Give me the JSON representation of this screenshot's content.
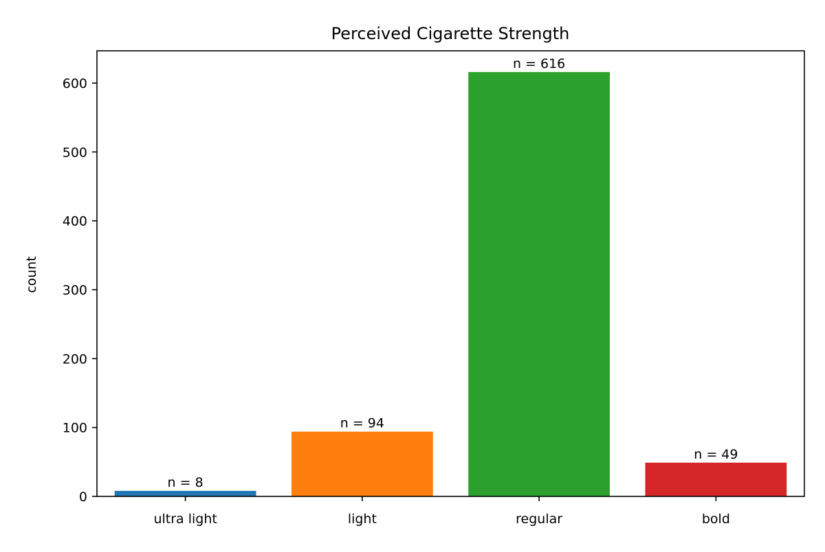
{
  "chart_data": {
    "type": "bar",
    "title": "Perceived Cigarette Strength",
    "xlabel": "",
    "ylabel": "count",
    "categories": [
      "ultra light",
      "light",
      "regular",
      "bold"
    ],
    "values": [
      8,
      94,
      616,
      49
    ],
    "data_labels": [
      "n = 8",
      "n = 94",
      "n = 616",
      "n = 49"
    ],
    "colors": [
      "#1f77b4",
      "#ff7f0e",
      "#2ca02c",
      "#d62728"
    ],
    "ylim": [
      0,
      646.8
    ],
    "yticks": [
      0,
      100,
      200,
      300,
      400,
      500,
      600
    ],
    "ytick_labels": [
      "0",
      "100",
      "200",
      "300",
      "400",
      "500",
      "600"
    ],
    "grid": false,
    "legend": "none"
  }
}
